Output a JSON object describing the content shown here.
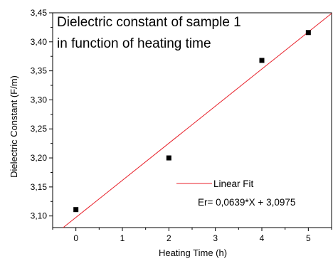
{
  "chart_data": {
    "type": "scatter",
    "title_lines": [
      "Dielectric constant of sample 1",
      "in function of heating time"
    ],
    "xlabel": "Heating Time (h)",
    "ylabel": "Dielectric Constant (F/m)",
    "xlim": [
      -0.5,
      5.5
    ],
    "ylim": [
      3.08,
      3.45
    ],
    "x_ticks": [
      0,
      1,
      2,
      3,
      4,
      5
    ],
    "x_tick_labels": [
      "0",
      "1",
      "2",
      "3",
      "4",
      "5"
    ],
    "y_ticks": [
      3.1,
      3.15,
      3.2,
      3.25,
      3.3,
      3.35,
      3.4,
      3.45
    ],
    "y_tick_labels": [
      "3,10",
      "3,15",
      "3,20",
      "3,25",
      "3,30",
      "3,35",
      "3,40",
      "3,45"
    ],
    "grid": false,
    "series": [
      {
        "kind": "points",
        "x": [
          0,
          2,
          4,
          5
        ],
        "y": [
          3.111,
          3.2,
          3.368,
          3.416
        ],
        "color": "#000000"
      }
    ],
    "fit": {
      "slope": 0.0639,
      "intercept": 3.0975,
      "color": "#e8202a",
      "legend_label": "Linear Fit",
      "equation": "Er= 0,0639*X + 3,0975"
    },
    "legend_placement": "lower-right"
  }
}
